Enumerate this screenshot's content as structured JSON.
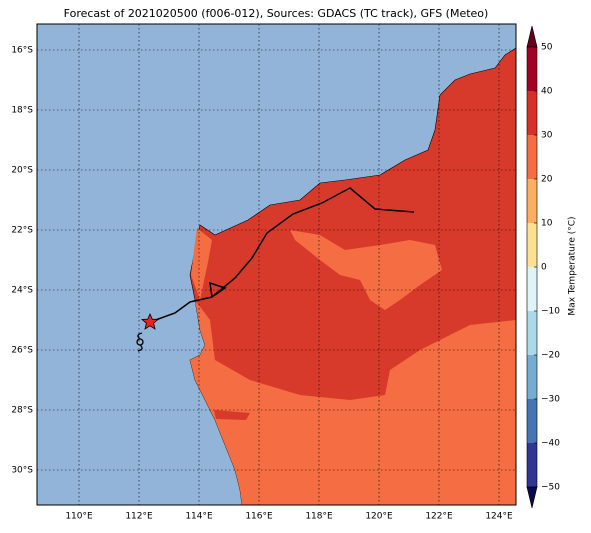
{
  "map": {
    "title": "Forecast of 2021020500 (f006-012), Sources: GDACS (TC track), GFS (Meteo)",
    "lat_labels": [
      "16°S",
      "18°S",
      "20°S",
      "22°S",
      "24°S",
      "26°S",
      "28°S",
      "30°S"
    ],
    "lon_labels": [
      "110°E",
      "112°E",
      "114°E",
      "116°E",
      "118°E",
      "120°E",
      "122°E",
      "124°E"
    ]
  },
  "colorbar": {
    "label": "Max Temperature (°C)",
    "ticks": [
      "50",
      "40",
      "30",
      "20",
      "10",
      "0",
      "−10",
      "−20",
      "−30",
      "−40",
      "−50"
    ]
  }
}
